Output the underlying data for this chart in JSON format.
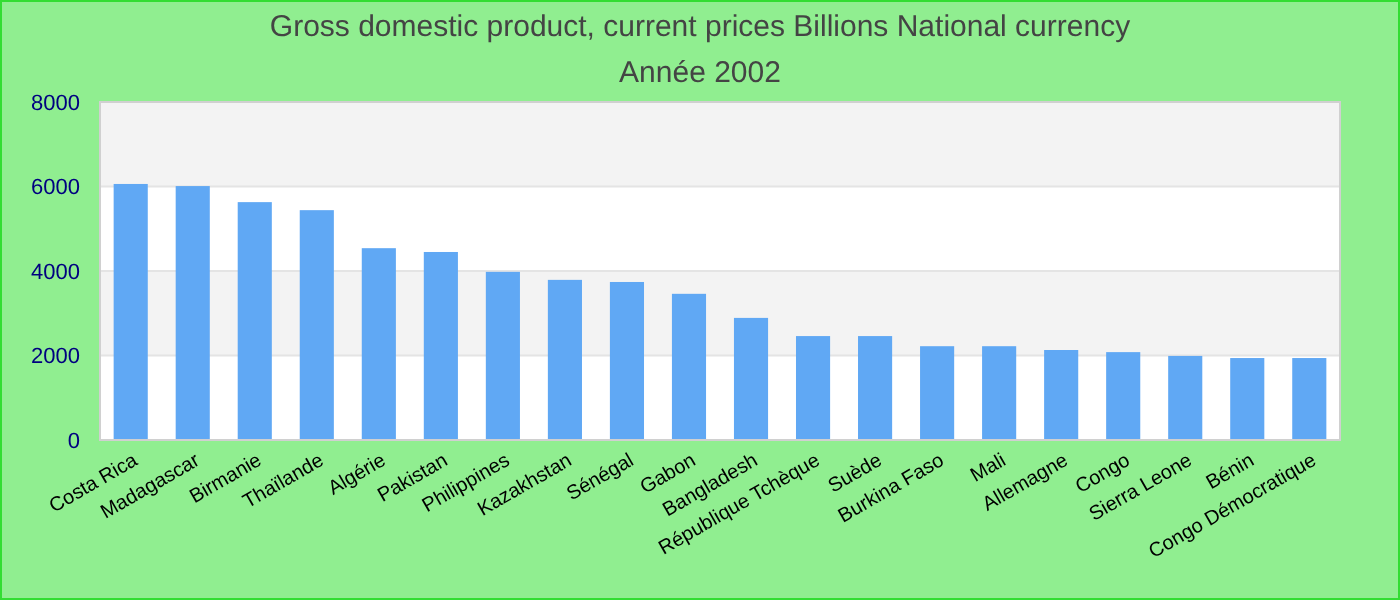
{
  "chart_data": {
    "type": "bar",
    "title": "Gross domestic product, current prices Billions National currency",
    "subtitle": "Année 2002",
    "categories": [
      "Costa Rica",
      "Madagascar",
      "Birmanie",
      "Thaïlande",
      "Algérie",
      "Pakistan",
      "Philippines",
      "Kazakhstan",
      "Sénégal",
      "Gabon",
      "Bangladesh",
      "République Tchèque",
      "Suède",
      "Burkina Faso",
      "Mali",
      "Allemagne",
      "Congo",
      "Sierra Leone",
      "Bénin",
      "Congo Démocratique"
    ],
    "values": [
      6060,
      6010,
      5630,
      5440,
      4540,
      4450,
      3980,
      3790,
      3740,
      3460,
      2890,
      2460,
      2460,
      2220,
      2220,
      2130,
      2080,
      1990,
      1940,
      1940
    ],
    "color": "#60a8f4",
    "ylim": [
      0,
      8000
    ],
    "yticks": [
      0,
      2000,
      4000,
      6000,
      8000
    ],
    "grid": "y"
  }
}
